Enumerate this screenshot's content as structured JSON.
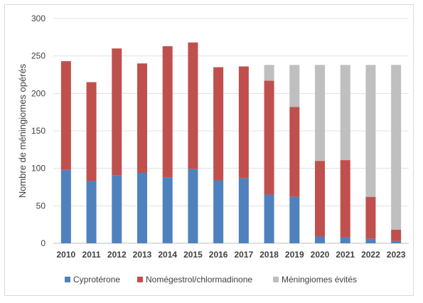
{
  "chart_data": {
    "type": "bar",
    "stacked": true,
    "ylabel": "Nombre de méningiomes opérés",
    "xlabel": "",
    "ylim": [
      0,
      300
    ],
    "yticks": [
      0,
      50,
      100,
      150,
      200,
      250,
      300
    ],
    "grid": true,
    "legend_position": "bottom",
    "categories": [
      "2010",
      "2011",
      "2012",
      "2013",
      "2014",
      "2015",
      "2016",
      "2017",
      "2018",
      "2019",
      "2020",
      "2021",
      "2022",
      "2023"
    ],
    "series": [
      {
        "name": "Cyprotérone",
        "color": "#4f81bd",
        "values": [
          98,
          83,
          91,
          94,
          88,
          99,
          84,
          87,
          65,
          62,
          9,
          8,
          6,
          3
        ]
      },
      {
        "name": "Nomégestrol/chlormadinone",
        "color": "#c0504d",
        "values": [
          145,
          132,
          169,
          146,
          175,
          169,
          151,
          149,
          152,
          120,
          101,
          103,
          56,
          15
        ]
      },
      {
        "name": "Méningiomes évités",
        "color": "#bfbfbf",
        "values": [
          0,
          0,
          0,
          0,
          0,
          0,
          0,
          0,
          21,
          56,
          128,
          127,
          176,
          220
        ]
      }
    ]
  }
}
